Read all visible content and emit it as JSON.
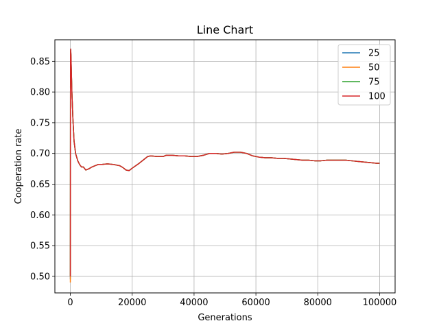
{
  "chart_data": {
    "type": "line",
    "title": "Line Chart",
    "xlabel": "Generations",
    "ylabel": "Cooperation rate",
    "xlim": [
      -5000,
      105000
    ],
    "ylim": [
      0.473,
      0.885
    ],
    "xticks": [
      0,
      20000,
      40000,
      60000,
      80000,
      100000
    ],
    "yticks": [
      0.5,
      0.55,
      0.6,
      0.65,
      0.7,
      0.75,
      0.8,
      0.85
    ],
    "grid": true,
    "legend": "upper-right",
    "series": [
      {
        "name": "25",
        "color": "#1f77b4",
        "x": [
          0,
          50,
          120,
          200,
          300,
          500,
          800,
          1200,
          1700,
          2400,
          3000,
          3600,
          4200,
          5000,
          6000,
          7000,
          8000,
          9000,
          10000,
          12000,
          14000,
          16000,
          17000,
          18000,
          19000,
          20000,
          22000,
          24000,
          25000,
          26000,
          28000,
          30000,
          31000,
          33000,
          35000,
          37000,
          39000,
          41000,
          43000,
          45000,
          47000,
          49000,
          51000,
          53000,
          55000,
          57000,
          59000,
          61000,
          63000,
          65000,
          67000,
          69000,
          71000,
          73000,
          75000,
          77000,
          79000,
          81000,
          83000,
          85000,
          87000,
          89000,
          91000,
          93000,
          95000,
          97000,
          99000,
          100000
        ],
        "y": [
          0.495,
          0.86,
          0.869,
          0.86,
          0.84,
          0.8,
          0.76,
          0.72,
          0.7,
          0.688,
          0.682,
          0.678,
          0.678,
          0.673,
          0.675,
          0.678,
          0.68,
          0.682,
          0.682,
          0.683,
          0.682,
          0.68,
          0.677,
          0.673,
          0.672,
          0.676,
          0.683,
          0.691,
          0.695,
          0.696,
          0.695,
          0.695,
          0.697,
          0.697,
          0.696,
          0.696,
          0.695,
          0.695,
          0.697,
          0.7,
          0.7,
          0.699,
          0.7,
          0.702,
          0.702,
          0.7,
          0.696,
          0.694,
          0.693,
          0.693,
          0.692,
          0.692,
          0.691,
          0.69,
          0.689,
          0.689,
          0.688,
          0.688,
          0.689,
          0.689,
          0.689,
          0.689,
          0.688,
          0.687,
          0.686,
          0.685,
          0.684,
          0.684
        ]
      },
      {
        "name": "50",
        "color": "#ff7f0e",
        "x": [
          0,
          50,
          120,
          200,
          300,
          500,
          800,
          1200,
          1700,
          2400,
          3000,
          3600,
          4200,
          5000,
          6000,
          7000,
          8000,
          9000,
          10000,
          12000,
          14000,
          16000,
          17000,
          18000,
          19000,
          20000,
          22000,
          24000,
          25000,
          26000,
          28000,
          30000,
          31000,
          33000,
          35000,
          37000,
          39000,
          41000,
          43000,
          45000,
          47000,
          49000,
          51000,
          53000,
          55000,
          57000,
          59000,
          61000,
          63000,
          65000,
          67000,
          69000,
          71000,
          73000,
          75000,
          77000,
          79000,
          81000,
          83000,
          85000,
          87000,
          89000,
          91000,
          93000,
          95000,
          97000,
          99000,
          100000
        ],
        "y": [
          0.49,
          0.855,
          0.867,
          0.858,
          0.838,
          0.8,
          0.76,
          0.72,
          0.7,
          0.688,
          0.682,
          0.678,
          0.678,
          0.673,
          0.675,
          0.678,
          0.68,
          0.682,
          0.682,
          0.683,
          0.682,
          0.68,
          0.677,
          0.673,
          0.672,
          0.676,
          0.683,
          0.691,
          0.695,
          0.696,
          0.695,
          0.695,
          0.697,
          0.697,
          0.696,
          0.696,
          0.695,
          0.695,
          0.697,
          0.7,
          0.7,
          0.699,
          0.7,
          0.702,
          0.702,
          0.7,
          0.696,
          0.694,
          0.693,
          0.693,
          0.692,
          0.692,
          0.691,
          0.69,
          0.689,
          0.689,
          0.688,
          0.688,
          0.689,
          0.689,
          0.689,
          0.689,
          0.688,
          0.687,
          0.686,
          0.685,
          0.684,
          0.684
        ]
      },
      {
        "name": "75",
        "color": "#2ca02c",
        "x": [
          0,
          50,
          120,
          200,
          300,
          500,
          800,
          1200,
          1700,
          2400,
          3000,
          3600,
          4200,
          5000,
          6000,
          7000,
          8000,
          9000,
          10000,
          12000,
          14000,
          16000,
          17000,
          18000,
          19000,
          20000,
          22000,
          24000,
          25000,
          26000,
          28000,
          30000,
          31000,
          33000,
          35000,
          37000,
          39000,
          41000,
          43000,
          45000,
          47000,
          49000,
          51000,
          53000,
          55000,
          57000,
          59000,
          61000,
          63000,
          65000,
          67000,
          69000,
          71000,
          73000,
          75000,
          77000,
          79000,
          81000,
          83000,
          85000,
          87000,
          89000,
          91000,
          93000,
          95000,
          97000,
          99000,
          100000
        ],
        "y": [
          0.5,
          0.86,
          0.869,
          0.86,
          0.84,
          0.8,
          0.76,
          0.72,
          0.7,
          0.688,
          0.682,
          0.678,
          0.678,
          0.673,
          0.675,
          0.678,
          0.68,
          0.682,
          0.682,
          0.683,
          0.682,
          0.68,
          0.677,
          0.673,
          0.672,
          0.676,
          0.683,
          0.691,
          0.695,
          0.696,
          0.695,
          0.695,
          0.697,
          0.697,
          0.696,
          0.696,
          0.695,
          0.695,
          0.697,
          0.7,
          0.7,
          0.699,
          0.7,
          0.702,
          0.702,
          0.7,
          0.696,
          0.694,
          0.693,
          0.693,
          0.692,
          0.692,
          0.691,
          0.69,
          0.689,
          0.689,
          0.688,
          0.688,
          0.689,
          0.689,
          0.689,
          0.689,
          0.688,
          0.687,
          0.686,
          0.685,
          0.684,
          0.684
        ]
      },
      {
        "name": "100",
        "color": "#d62728",
        "x": [
          0,
          50,
          120,
          200,
          300,
          500,
          800,
          1200,
          1700,
          2400,
          3000,
          3600,
          4200,
          5000,
          6000,
          7000,
          8000,
          9000,
          10000,
          12000,
          14000,
          16000,
          17000,
          18000,
          19000,
          20000,
          22000,
          24000,
          25000,
          26000,
          28000,
          30000,
          31000,
          33000,
          35000,
          37000,
          39000,
          41000,
          43000,
          45000,
          47000,
          49000,
          51000,
          53000,
          55000,
          57000,
          59000,
          61000,
          63000,
          65000,
          67000,
          69000,
          71000,
          73000,
          75000,
          77000,
          79000,
          81000,
          83000,
          85000,
          87000,
          89000,
          91000,
          93000,
          95000,
          97000,
          99000,
          100000
        ],
        "y": [
          0.5,
          0.86,
          0.87,
          0.861,
          0.842,
          0.8,
          0.76,
          0.72,
          0.7,
          0.688,
          0.682,
          0.678,
          0.678,
          0.673,
          0.675,
          0.678,
          0.68,
          0.682,
          0.682,
          0.683,
          0.682,
          0.68,
          0.677,
          0.673,
          0.672,
          0.676,
          0.683,
          0.691,
          0.695,
          0.696,
          0.695,
          0.695,
          0.697,
          0.697,
          0.696,
          0.696,
          0.695,
          0.695,
          0.697,
          0.7,
          0.7,
          0.699,
          0.7,
          0.702,
          0.702,
          0.7,
          0.696,
          0.694,
          0.693,
          0.693,
          0.692,
          0.692,
          0.691,
          0.69,
          0.689,
          0.689,
          0.688,
          0.688,
          0.689,
          0.689,
          0.689,
          0.689,
          0.688,
          0.687,
          0.686,
          0.685,
          0.684,
          0.684
        ]
      }
    ]
  }
}
